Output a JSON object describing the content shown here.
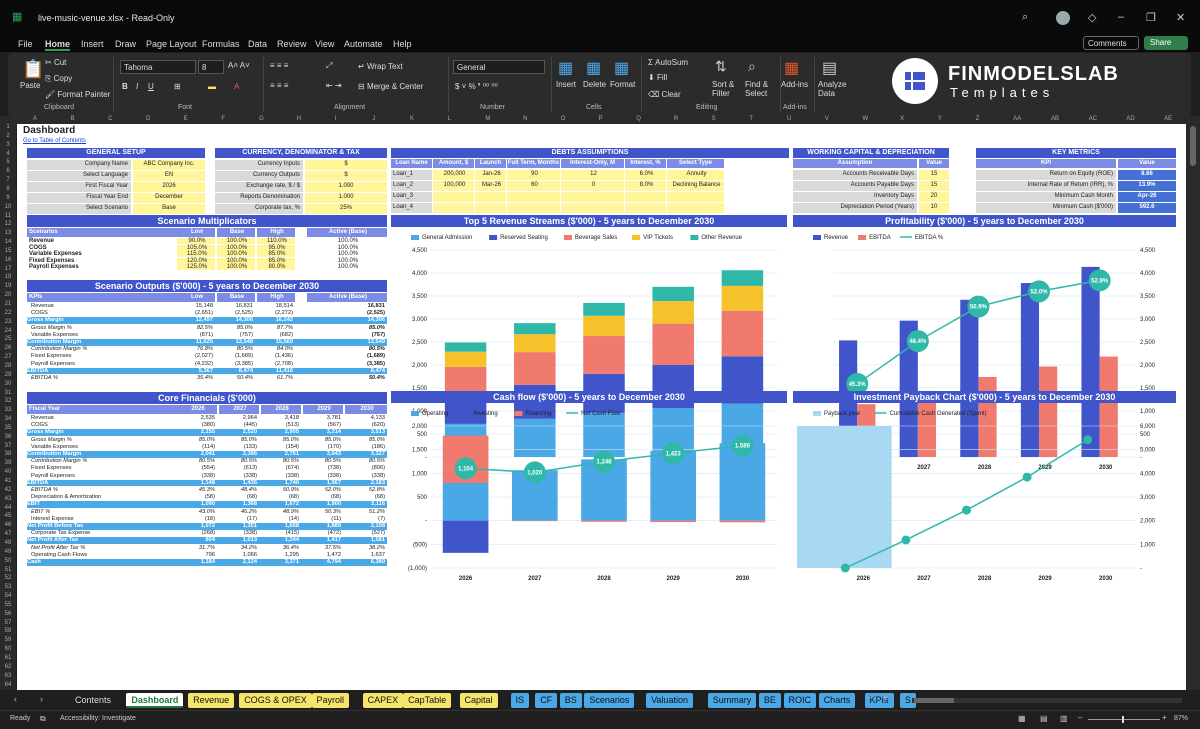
{
  "window": {
    "title": "live-music-venue.xlsx - Read-Only"
  },
  "menu": [
    "File",
    "Home",
    "Insert",
    "Draw",
    "Page Layout",
    "Formulas",
    "Data",
    "Review",
    "View",
    "Automate",
    "Help"
  ],
  "actions": {
    "comments": "Comments",
    "share": "Share"
  },
  "ribbon": {
    "paste": "Paste",
    "cut": "Cut",
    "copy": "Copy",
    "format_painter": "Format Painter",
    "clipboard": "Clipboard",
    "font_name": "Tahoma",
    "font_size": "8",
    "font": "Font",
    "wrap": "Wrap Text",
    "merge": "Merge & Center",
    "alignment": "Alignment",
    "number_format": "General",
    "number": "Number",
    "insert": "Insert",
    "delete": "Delete",
    "format": "Format",
    "cells": "Cells",
    "autosum": "AutoSum",
    "fill": "Fill",
    "clear": "Clear",
    "sort": "Sort & Filter",
    "find": "Find & Select",
    "editing": "Editing",
    "addins": "Add-ins",
    "analyze": "Analyze Data",
    "brand1": "FINMODELSLAB",
    "brand2": "Templates"
  },
  "columns": [
    "A",
    "B",
    "C",
    "D",
    "E",
    "F",
    "G",
    "H",
    "I",
    "J",
    "K",
    "L",
    "M",
    "N",
    "O",
    "P",
    "Q",
    "R",
    "S",
    "T",
    "U",
    "V",
    "W",
    "X",
    "Y",
    "Z",
    "AA",
    "AB",
    "AC",
    "AD",
    "AE"
  ],
  "sheet": {
    "title": "Dashboard",
    "toc": "Go to Table of Contents"
  },
  "general": {
    "title": "GENERAL SETUP",
    "rows": [
      [
        "Company Name",
        "ABC Company Inc."
      ],
      [
        "Select Language",
        "EN"
      ],
      [
        "First Fiscal Year",
        "2026"
      ],
      [
        "Fiscal Year End",
        "December"
      ],
      [
        "Select Scenario",
        "Base"
      ]
    ]
  },
  "currency": {
    "title": "CURRENCY, DENOMINATOR & TAX",
    "rows": [
      [
        "Currency Inputs",
        "$"
      ],
      [
        "Currency Outputs",
        "$"
      ],
      [
        "Exchange rate, $ / $",
        "1.000"
      ],
      [
        "Reports Denomination",
        "1.000"
      ],
      [
        "Corporate tax, %",
        "25%"
      ]
    ]
  },
  "debts": {
    "title": "DEBTS ASSUMPTIONS",
    "headers": [
      "Loan Name",
      "Amount, $",
      "Launch",
      "Full Term, Months",
      "Interest-Only, M",
      "Interest, %",
      "Select Type"
    ],
    "rows": [
      [
        "Loan_1",
        "200,000",
        "Jan-26",
        "90",
        "12",
        "6.0%",
        "Annuity"
      ],
      [
        "Loan_2",
        "100,000",
        "Mar-26",
        "60",
        "0",
        "8.0%",
        "Declining Balance"
      ],
      [
        "Loan_3",
        "",
        "",
        "",
        "",
        "",
        ""
      ],
      [
        "Loan_4",
        "",
        "",
        "",
        "",
        "",
        ""
      ]
    ]
  },
  "wc": {
    "title": "WORKING CAPITAL & DEPRECIATION",
    "headers": [
      "Assumption",
      "Value"
    ],
    "rows": [
      [
        "Accounts Receivable Days",
        "15"
      ],
      [
        "Accounts Payable Days",
        "15"
      ],
      [
        "Inventory Days",
        "20"
      ],
      [
        "Depreciation Period (Years)",
        "10"
      ]
    ]
  },
  "km": {
    "title": "KEY METRICS",
    "headers": [
      "KPI",
      "Value"
    ],
    "rows": [
      [
        "Return on Equity (ROE)",
        "8.66"
      ],
      [
        "Internal Rate of Return (IRR), %",
        "13.9%"
      ],
      [
        "Minimum Cash Month",
        "Apr-26"
      ],
      [
        "Minimum Cash ($'000)",
        "592.6"
      ]
    ]
  },
  "multipliers": {
    "title": "Scenario Multiplicators",
    "headers": [
      "Scenarios",
      "Low",
      "Base",
      "High",
      "Active (Base)"
    ],
    "rows": [
      [
        "Revenue",
        "90.0%",
        "100.0%",
        "110.0%",
        "100.0%"
      ],
      [
        "COGS",
        "105.0%",
        "100.0%",
        "95.0%",
        "100.0%"
      ],
      [
        "Variable Expenses",
        "115.0%",
        "100.0%",
        "85.0%",
        "100.0%"
      ],
      [
        "Fixed Expenses",
        "120.0%",
        "100.0%",
        "85.0%",
        "100.0%"
      ],
      [
        "Payroll Expenses",
        "125.0%",
        "100.0%",
        "80.0%",
        "100.0%"
      ]
    ]
  },
  "outputs": {
    "title": "Scenario Outputs ($'000) - 5 years to December 2030",
    "headers": [
      "KPIs",
      "Low",
      "Base",
      "High",
      "Active (Base)"
    ],
    "rows": [
      [
        "Revenue",
        "15,148",
        "16,831",
        "18,514",
        "16,831",
        "n"
      ],
      [
        "COGS",
        "(2,651)",
        "(2,525)",
        "(2,272)",
        "(2,525)",
        "n"
      ],
      [
        "Gross Margin",
        "12,497",
        "14,306",
        "16,242",
        "14,306",
        "h"
      ],
      [
        "Gross Margin %",
        "82.5%",
        "85.0%",
        "87.7%",
        "85.0%",
        "i"
      ],
      [
        "Variable Expenses",
        "(871)",
        "(757)",
        "(682)",
        "(757)",
        "n"
      ],
      [
        "Contribution Margin",
        "11,625",
        "13,548",
        "15,560",
        "13,549",
        "h"
      ],
      [
        "Contribution Margin %",
        "76.8%",
        "80.5%",
        "84.0%",
        "80.5%",
        "i"
      ],
      [
        "Fixed Expenses",
        "(2,027)",
        "(1,689)",
        "(1,436)",
        "(1,689)",
        "n"
      ],
      [
        "Payroll Expenses",
        "(4,232)",
        "(3,385)",
        "(2,708)",
        "(3,385)",
        "n"
      ],
      [
        "EBITDA",
        "5,367",
        "8,474",
        "11,416",
        "8,474",
        "h"
      ],
      [
        "EBITDA %",
        "35.4%",
        "50.4%",
        "61.7%",
        "50.4%",
        "i"
      ]
    ]
  },
  "core": {
    "title": "Core Financials ($'000)",
    "headers": [
      "Fiscal Year",
      "2026",
      "2027",
      "2028",
      "2029",
      "2030"
    ],
    "rows": [
      [
        "Revenue",
        "2,535",
        "2,964",
        "3,418",
        "3,781",
        "4,133",
        "n"
      ],
      [
        "COGS",
        "(380)",
        "(445)",
        "(513)",
        "(567)",
        "(620)",
        "n"
      ],
      [
        "Gross Margin",
        "2,155",
        "2,520",
        "2,905",
        "3,214",
        "3,513",
        "h"
      ],
      [
        "Gross Margin %",
        "85.0%",
        "85.0%",
        "85.0%",
        "85.0%",
        "85.0%",
        "i"
      ],
      [
        "Variable Expenses",
        "(114)",
        "(133)",
        "(154)",
        "(170)",
        "(186)",
        "n"
      ],
      [
        "Contribution Margin",
        "2,041",
        "2,386",
        "2,751",
        "3,043",
        "3,327",
        "h"
      ],
      [
        "Contribution Margin %",
        "80.5%",
        "80.5%",
        "80.5%",
        "80.5%",
        "80.5%",
        "i"
      ],
      [
        "Fixed Expenses",
        "(554)",
        "(613)",
        "(674)",
        "(738)",
        "(806)",
        "n"
      ],
      [
        "Payroll Expenses",
        "(338)",
        "(338)",
        "(338)",
        "(338)",
        "(338)",
        "n"
      ],
      [
        "EBITDA",
        "1,148",
        "1,436",
        "1,740",
        "1,967",
        "2,183",
        "h"
      ],
      [
        "EBITDA %",
        "45.3%",
        "48.4%",
        "50.9%",
        "52.0%",
        "52.8%",
        "i"
      ],
      [
        "Depreciation & Amortization",
        "(58)",
        "(68)",
        "(68)",
        "(68)",
        "(68)",
        "n"
      ],
      [
        "EBIT",
        "1,090",
        "1,368",
        "1,672",
        "1,900",
        "2,116",
        "h"
      ],
      [
        "EBIT %",
        "43.0%",
        "46.2%",
        "48.9%",
        "50.3%",
        "51.2%",
        "i"
      ],
      [
        "Interest Expense",
        "(18)",
        "(17)",
        "(14)",
        "(11)",
        "(7)",
        "n"
      ],
      [
        "Net Profit Before Tax",
        "1,072",
        "1,351",
        "1,658",
        "1,889",
        "2,108",
        "h"
      ],
      [
        "Corporate Tax Expense",
        "(268)",
        "(338)",
        "(415)",
        "(472)",
        "(527)",
        "n"
      ],
      [
        "Net Profit After Tax",
        "804",
        "1,013",
        "1,244",
        "1,417",
        "1,581",
        "h"
      ],
      [
        "Net Profit After Tax %",
        "31.7%",
        "34.2%",
        "36.4%",
        "37.5%",
        "38.2%",
        "i"
      ],
      [
        "Operating Cash Flows",
        "796",
        "1,066",
        "1,295",
        "1,472",
        "1,637",
        "n"
      ],
      [
        "Cash",
        "1,184",
        "2,124",
        "3,371",
        "4,794",
        "6,380",
        "h"
      ]
    ]
  },
  "chart_data": [
    {
      "type": "bar",
      "title": "Top 5 Revenue Streams ($'000) - 5 years to December 2030",
      "categories": [
        "2026",
        "2027",
        "2028",
        "2029",
        "2030"
      ],
      "ylim": [
        0,
        4500
      ],
      "yticks": [
        "-",
        "500",
        "1,000",
        "1,500",
        "2,000",
        "2,500",
        "3,000",
        "3,500",
        "4,000",
        "4,500"
      ],
      "stacked": true,
      "series": [
        {
          "name": "General Admission",
          "color": "#4ba8e6",
          "values": [
            720,
            830,
            960,
            1060,
            1160
          ]
        },
        {
          "name": "Reserved Seating",
          "color": "#3f55c9",
          "values": [
            630,
            740,
            850,
            940,
            1030
          ]
        },
        {
          "name": "Beverage Sales",
          "color": "#f07a6e",
          "values": [
            610,
            710,
            820,
            900,
            990
          ]
        },
        {
          "name": "VIP Tickets",
          "color": "#f5c22b",
          "values": [
            330,
            390,
            440,
            490,
            540
          ]
        },
        {
          "name": "Other Revenue",
          "color": "#2fb8a8",
          "values": [
            200,
            240,
            280,
            310,
            340
          ]
        }
      ]
    },
    {
      "type": "bar",
      "title": "Profitability ($'000) - 5 years to December 2030",
      "categories": [
        "2026",
        "2027",
        "2028",
        "2029",
        "2030"
      ],
      "ylim": [
        0,
        4500
      ],
      "yticks": [
        "-",
        "500",
        "1,000",
        "1,500",
        "2,000",
        "2,500",
        "3,000",
        "3,500",
        "4,000",
        "4,500"
      ],
      "series": [
        {
          "name": "Revenue",
          "color": "#3f55c9",
          "values": [
            2535,
            2964,
            3418,
            3781,
            4133
          ]
        },
        {
          "name": "EBITDA",
          "color": "#f07a6e",
          "values": [
            1148,
            1436,
            1740,
            1967,
            2183
          ]
        },
        {
          "name": "EBITDA %",
          "color": "#2fb8a8",
          "type": "line",
          "values": [
            45.3,
            48.4,
            50.9,
            52.0,
            52.8
          ],
          "labels": [
            "45.3%",
            "48.4%",
            "50.9%",
            "52.0%",
            "52.8%"
          ]
        }
      ]
    },
    {
      "type": "bar",
      "title": "Cash flow ($'000) - 5 years to December 2030",
      "categories": [
        "2026",
        "2027",
        "2028",
        "2029",
        "2030"
      ],
      "ylim": [
        -1000,
        2000
      ],
      "yticks": [
        "(1,000)",
        "(500)",
        "-",
        "500",
        "1,000",
        "1,500",
        "2,000"
      ],
      "series": [
        {
          "name": "Operating",
          "color": "#4ba8e6",
          "values": [
            796,
            1066,
            1295,
            1472,
            1637
          ]
        },
        {
          "name": "Investing",
          "color": "#3f55c9",
          "values": [
            -680,
            0,
            0,
            0,
            0
          ]
        },
        {
          "name": "Financing",
          "color": "#f07a6e",
          "values": [
            1000,
            -10,
            -25,
            -30,
            -35
          ]
        },
        {
          "name": "Net Cash Flow",
          "color": "#2fb8a8",
          "type": "line",
          "values": [
            1104,
            1020,
            1248,
            1423,
            1586
          ],
          "labels": [
            "1,104",
            "1,020",
            "1,248",
            "1,423",
            "1,586"
          ]
        }
      ]
    },
    {
      "type": "line",
      "title": "Investment Payback Chart ($'000) - 5 years to December 2030",
      "categories": [
        "2026",
        "2027",
        "2028",
        "2029",
        "2030"
      ],
      "ylim": [
        0,
        6000
      ],
      "yticks": [
        "-",
        "1,000",
        "2,000",
        "3,000",
        "4,000",
        "5,000",
        "6,000"
      ],
      "series": [
        {
          "name": "Payback year",
          "color": "#a9d8f2",
          "type": "bar",
          "values": [
            6000,
            0,
            0,
            0,
            0
          ]
        },
        {
          "name": "Cumulative Cash Generated (Spent)",
          "color": "#2fb8a8",
          "type": "line",
          "values": [
            0,
            1184,
            2447,
            3840,
            5420
          ]
        }
      ]
    }
  ],
  "tabs": [
    {
      "label": "Contents",
      "color": "none"
    },
    {
      "label": "Dashboard",
      "color": "active"
    },
    {
      "label": "Revenue",
      "color": "#f5e56b"
    },
    {
      "label": "COGS & OPEX",
      "color": "#f5e56b"
    },
    {
      "label": "Payroll",
      "color": "#f5e56b"
    },
    {
      "label": "CAPEX",
      "color": "#f5e56b"
    },
    {
      "label": "CapTable",
      "color": "#f5e56b"
    },
    {
      "label": "Capital",
      "color": "#f5e56b"
    },
    {
      "label": "IS",
      "color": "#4ba8e6"
    },
    {
      "label": "CF",
      "color": "#4ba8e6"
    },
    {
      "label": "BS",
      "color": "#4ba8e6"
    },
    {
      "label": "Scenarios",
      "color": "#4ba8e6"
    },
    {
      "label": "Valuation",
      "color": "#4ba8e6"
    },
    {
      "label": "Summary",
      "color": "#4ba8e6"
    },
    {
      "label": "BE",
      "color": "#4ba8e6"
    },
    {
      "label": "ROIC",
      "color": "#4ba8e6"
    },
    {
      "label": "Charts",
      "color": "#4ba8e6"
    },
    {
      "label": "KPIs",
      "color": "#4ba8e6"
    },
    {
      "label": "S",
      "color": "#4ba8e6"
    }
  ],
  "status": {
    "ready": "Ready",
    "access": "Accessibility: Investigate",
    "zoom": "87%"
  }
}
